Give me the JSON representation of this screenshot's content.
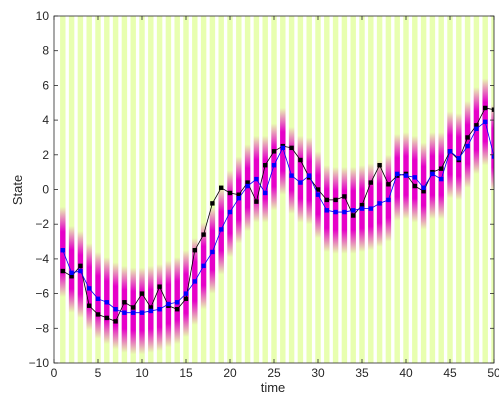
{
  "chart_data": {
    "type": "line",
    "title": "",
    "xlabel": "time",
    "ylabel": "State",
    "xlim": [
      0,
      50
    ],
    "ylim": [
      -10,
      10
    ],
    "grid": false,
    "xticks": [
      0,
      5,
      10,
      15,
      20,
      25,
      30,
      35,
      40,
      45,
      50
    ],
    "yticks": [
      -10,
      -8,
      -6,
      -4,
      -2,
      0,
      2,
      4,
      6,
      8,
      10
    ],
    "background_color": "#e8ffb0",
    "density_color": "#e600c8",
    "x": [
      1,
      2,
      3,
      4,
      5,
      6,
      7,
      8,
      9,
      10,
      11,
      12,
      13,
      14,
      15,
      16,
      17,
      18,
      19,
      20,
      21,
      22,
      23,
      24,
      25,
      26,
      27,
      28,
      29,
      30,
      31,
      32,
      33,
      34,
      35,
      36,
      37,
      38,
      39,
      40,
      41,
      42,
      43,
      44,
      45,
      46,
      47,
      48,
      49,
      50
    ],
    "series": [
      {
        "color": "#000000",
        "marker": "square",
        "values": [
          -4.7,
          -5.0,
          -4.4,
          -6.7,
          -7.2,
          -7.4,
          -7.6,
          -6.5,
          -6.8,
          -6.0,
          -6.8,
          -5.6,
          -6.7,
          -6.9,
          -6.3,
          -3.5,
          -2.6,
          -0.8,
          0.1,
          -0.2,
          -0.3,
          0.4,
          -0.7,
          1.4,
          2.2,
          2.5,
          2.4,
          1.7,
          0.7,
          0.0,
          -0.6,
          -0.6,
          -0.4,
          -1.5,
          -0.9,
          0.4,
          1.4,
          0.3,
          0.8,
          0.9,
          0.2,
          -0.1,
          1.0,
          1.2,
          2.2,
          1.7,
          3.0,
          3.7,
          4.7,
          4.6
        ]
      },
      {
        "color": "#0000ff",
        "marker": "square",
        "values": [
          -3.5,
          -4.8,
          -4.7,
          -5.7,
          -6.3,
          -6.5,
          -6.9,
          -7.1,
          -7.1,
          -7.1,
          -7.0,
          -6.9,
          -6.6,
          -6.5,
          -6.0,
          -5.3,
          -4.4,
          -3.6,
          -2.3,
          -1.3,
          -0.5,
          0.2,
          0.6,
          -0.2,
          1.4,
          2.4,
          0.8,
          0.4,
          0.8,
          -0.3,
          -1.2,
          -1.3,
          -1.3,
          -1.2,
          -1.1,
          -1.1,
          -0.8,
          -0.6,
          0.9,
          0.8,
          0.7,
          0.1,
          0.9,
          0.6,
          2.2,
          1.8,
          2.5,
          3.5,
          3.9,
          1.9
        ]
      }
    ],
    "density_band": {
      "center": [
        -3.6,
        -4.6,
        -4.9,
        -5.6,
        -6.1,
        -6.4,
        -6.7,
        -6.9,
        -7.0,
        -7.0,
        -6.9,
        -6.8,
        -6.6,
        -6.4,
        -6.0,
        -5.3,
        -4.4,
        -3.5,
        -2.4,
        -1.4,
        -0.6,
        0.1,
        0.6,
        0.6,
        1.3,
        2.2,
        1.1,
        0.6,
        0.5,
        -0.3,
        -1.1,
        -1.2,
        -1.2,
        -1.2,
        -1.1,
        -1.0,
        -0.8,
        -0.5,
        0.7,
        0.8,
        0.6,
        0.2,
        0.8,
        0.8,
        2.0,
        1.9,
        2.6,
        3.4,
        3.9,
        2.4
      ],
      "halfwidth": [
        2.6,
        2.5,
        2.5,
        2.5,
        2.5,
        2.5,
        2.5,
        2.5,
        2.5,
        2.5,
        2.5,
        2.5,
        2.5,
        2.5,
        2.5,
        2.5,
        2.5,
        2.5,
        2.5,
        2.5,
        2.5,
        2.5,
        2.5,
        2.5,
        2.5,
        2.5,
        2.5,
        2.5,
        2.5,
        2.5,
        2.5,
        2.5,
        2.5,
        2.5,
        2.5,
        2.5,
        2.5,
        2.5,
        2.5,
        2.5,
        2.5,
        2.5,
        2.5,
        2.5,
        2.5,
        2.5,
        2.5,
        2.5,
        2.5,
        2.5
      ]
    }
  }
}
